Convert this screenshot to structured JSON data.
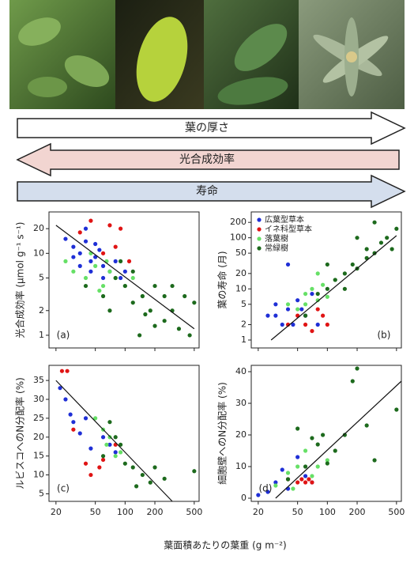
{
  "arrows": [
    "葉の厚さ",
    "光合成効率",
    "寿命"
  ],
  "x_label": "葉面積あたりの葉重 (g m⁻²)",
  "chart_data": [
    {
      "type": "scatter",
      "panel_label": "(a)",
      "y_label": "光合成効率 (μmol g⁻¹ s⁻¹)",
      "xlog": true,
      "ylog": true,
      "xlim": [
        17,
        560
      ],
      "ylim": [
        0.7,
        32
      ],
      "xticks": [
        20,
        50,
        100,
        200,
        500
      ],
      "yticks": [
        1,
        2,
        5,
        10,
        20
      ],
      "xtick_labels": false,
      "series": [
        {
          "color": "#1f2fd6",
          "x": [
            25,
            30,
            35,
            40,
            45,
            50,
            55,
            60,
            70,
            80,
            90,
            100,
            40,
            50,
            60,
            35,
            45,
            30
          ],
          "y": [
            15,
            12,
            10,
            14,
            8,
            9,
            11,
            7,
            6,
            8,
            5,
            6,
            20,
            13,
            5,
            7,
            6,
            9
          ]
        },
        {
          "color": "#e01414",
          "x": [
            45,
            70,
            90,
            35,
            60,
            80,
            110
          ],
          "y": [
            25,
            22,
            20,
            18,
            10,
            12,
            8
          ]
        },
        {
          "color": "#66e066",
          "x": [
            25,
            30,
            40,
            50,
            60,
            70,
            80,
            100,
            120,
            150,
            45,
            55,
            65
          ],
          "y": [
            8,
            6,
            5,
            7,
            4,
            6,
            5,
            4,
            5,
            3,
            10,
            3.5,
            8
          ]
        },
        {
          "color": "#1d6a1d",
          "x": [
            40,
            60,
            80,
            100,
            120,
            150,
            180,
            200,
            250,
            300,
            350,
            400,
            450,
            500,
            120,
            200,
            90,
            160,
            300,
            70,
            140,
            250
          ],
          "y": [
            4,
            3,
            5,
            4,
            2.5,
            3,
            2,
            4,
            1.5,
            2,
            1.2,
            3,
            1,
            2.5,
            6,
            1.3,
            8,
            1.8,
            4,
            2,
            1,
            3
          ]
        }
      ],
      "trend_line": {
        "x": [
          20,
          500
        ],
        "y": [
          22,
          1.2
        ]
      }
    },
    {
      "type": "scatter",
      "panel_label": "(b)",
      "y_label": "葉の寿命 (月)",
      "xlog": true,
      "ylog": true,
      "legend": "top-left",
      "xlim": [
        17,
        560
      ],
      "ylim": [
        0.7,
        320
      ],
      "xticks": [
        20,
        50,
        100,
        200,
        500
      ],
      "yticks": [
        1,
        2,
        5,
        10,
        20,
        50,
        100,
        200
      ],
      "xtick_labels": false,
      "series": [
        {
          "name": "広葉型草本",
          "color": "#1f2fd6",
          "x": [
            25,
            30,
            35,
            40,
            45,
            50,
            60,
            70,
            80,
            40,
            55,
            30
          ],
          "y": [
            3,
            5,
            2,
            4,
            2,
            6,
            3,
            8,
            2,
            30,
            4,
            3
          ]
        },
        {
          "name": "イネ科型草本",
          "color": "#e01414",
          "x": [
            40,
            50,
            60,
            70,
            80,
            90,
            100
          ],
          "y": [
            2,
            3,
            2,
            1.5,
            4,
            3,
            2
          ]
        },
        {
          "name": "落葉樹",
          "color": "#66e066",
          "x": [
            40,
            50,
            60,
            70,
            80,
            90,
            100,
            120,
            60,
            80
          ],
          "y": [
            5,
            4,
            8,
            10,
            6,
            12,
            7,
            15,
            5,
            20
          ]
        },
        {
          "name": "常緑樹",
          "color": "#1d6a1d",
          "x": [
            60,
            80,
            100,
            120,
            150,
            180,
            200,
            250,
            300,
            350,
            400,
            500,
            150,
            250,
            100,
            200,
            300,
            450
          ],
          "y": [
            3,
            8,
            10,
            15,
            20,
            30,
            25,
            60,
            50,
            80,
            100,
            150,
            10,
            40,
            30,
            100,
            200,
            60
          ]
        }
      ],
      "trend_line": {
        "x": [
          27,
          500
        ],
        "y": [
          1,
          110
        ]
      }
    },
    {
      "type": "scatter",
      "panel_label": "(c)",
      "y_label": "ルビスコへのN分配率 (%)",
      "xlog": true,
      "ylog": false,
      "xlim": [
        17,
        560
      ],
      "ylim": [
        3,
        39
      ],
      "xticks": [
        20,
        50,
        100,
        200,
        500
      ],
      "yticks": [
        5,
        10,
        15,
        20,
        25,
        30,
        35
      ],
      "xtick_labels": true,
      "series": [
        {
          "color": "#1f2fd6",
          "x": [
            22,
            25,
            28,
            30,
            35,
            40,
            45,
            60,
            70,
            80
          ],
          "y": [
            33,
            30,
            26,
            24,
            21,
            25,
            17,
            20,
            18,
            16
          ]
        },
        {
          "color": "#e01414",
          "x": [
            23,
            26,
            30,
            40,
            45,
            55,
            60,
            80
          ],
          "y": [
            37.5,
            37.5,
            22,
            13,
            10,
            12,
            14,
            18
          ]
        },
        {
          "color": "#66e066",
          "x": [
            50,
            60,
            65,
            70,
            80,
            90
          ],
          "y": [
            25,
            22,
            18,
            20,
            15,
            16
          ]
        },
        {
          "color": "#1d6a1d",
          "x": [
            60,
            80,
            100,
            120,
            150,
            180,
            200,
            250,
            500,
            90,
            130,
            70
          ],
          "y": [
            15,
            20,
            13,
            12,
            10,
            8,
            12,
            9,
            11,
            18,
            7,
            24
          ]
        }
      ],
      "trend_line": {
        "x": [
          20,
          300
        ],
        "y": [
          35,
          3
        ]
      }
    },
    {
      "type": "scatter",
      "panel_label": "(d)",
      "y_label": "細胞壁へのN分配率 (%)",
      "xlog": true,
      "ylog": false,
      "xlim": [
        17,
        560
      ],
      "ylim": [
        -1,
        42
      ],
      "xticks": [
        20,
        50,
        100,
        200,
        500
      ],
      "yticks": [
        0,
        10,
        20,
        30,
        40
      ],
      "xtick_labels": true,
      "series": [
        {
          "color": "#1f2fd6",
          "x": [
            20,
            30,
            35,
            40,
            50,
            60,
            70,
            25
          ],
          "y": [
            1,
            5,
            9,
            3,
            13,
            7,
            5,
            2
          ]
        },
        {
          "color": "#e01414",
          "x": [
            40,
            50,
            55,
            60,
            65,
            70
          ],
          "y": [
            6,
            5,
            6,
            5,
            6,
            5
          ]
        },
        {
          "color": "#66e066",
          "x": [
            30,
            40,
            50,
            60,
            70,
            80,
            100,
            45
          ],
          "y": [
            4,
            8,
            10,
            15,
            7,
            10,
            12,
            3
          ]
        },
        {
          "color": "#1d6a1d",
          "x": [
            40,
            50,
            60,
            80,
            100,
            120,
            150,
            180,
            200,
            250,
            300,
            500,
            90,
            70
          ],
          "y": [
            6,
            22,
            10,
            17,
            11,
            15,
            20,
            37,
            41,
            23,
            12,
            28,
            20,
            19
          ]
        }
      ],
      "trend_line": {
        "x": [
          30,
          560
        ],
        "y": [
          0,
          37
        ]
      }
    }
  ]
}
